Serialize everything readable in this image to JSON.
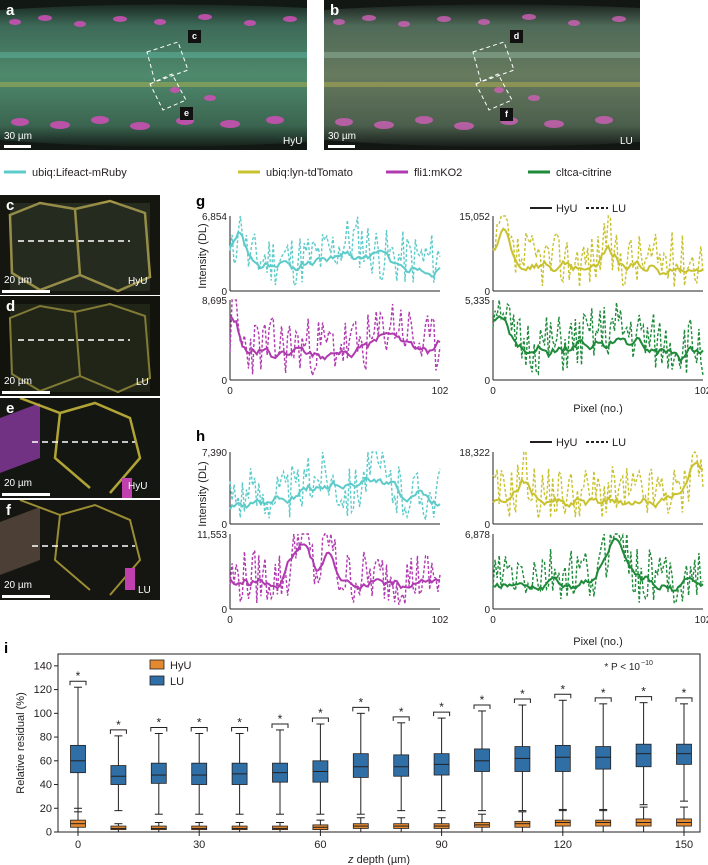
{
  "panels": {
    "a": {
      "letter": "a",
      "condition": "HyU",
      "scale": "30 µm",
      "inset_c": "c",
      "inset_e": "e"
    },
    "b": {
      "letter": "b",
      "condition": "LU",
      "scale": "30 µm",
      "inset_d": "d",
      "inset_f": "f"
    },
    "c": {
      "letter": "c",
      "condition": "HyU",
      "scale": "20 µm"
    },
    "d": {
      "letter": "d",
      "condition": "LU",
      "scale": "20 µm"
    },
    "e": {
      "letter": "e",
      "condition": "HyU",
      "scale": "20 µm"
    },
    "f": {
      "letter": "f",
      "condition": "LU",
      "scale": "20 µm"
    },
    "g": {
      "letter": "g"
    },
    "h": {
      "letter": "h"
    },
    "i": {
      "letter": "i"
    }
  },
  "legend_channels": [
    {
      "label": "ubiq:Lifeact-mRuby",
      "color": "#5ecbcb"
    },
    {
      "label": "ubiq:lyn-tdTomato",
      "color": "#c9c230"
    },
    {
      "label": "fli1:mKO2",
      "color": "#b03ab0"
    },
    {
      "label": "cltca-citrine",
      "color": "#1e8a3a"
    }
  ],
  "profile_legend": {
    "solid": "HyU",
    "dashed": "LU"
  },
  "profile_axes": {
    "ylabel": "Intensity (DL)",
    "xlabel": "Pixel (no.)",
    "xmin": "0",
    "xmax": "102",
    "ymin": "0"
  },
  "profile_ymax": {
    "g_cyan": "6,854",
    "g_yellow": "15,052",
    "g_magenta": "8,695",
    "g_green": "5,335",
    "h_cyan": "7,390",
    "h_yellow": "18,322",
    "h_magenta": "11,553",
    "h_green": "6,878"
  },
  "box_legend": {
    "hyu": "HyU",
    "lu": "LU",
    "significance": "* P < 10",
    "significance_exp": "−10"
  },
  "colors": {
    "hyu": "#e3892f",
    "lu": "#2f6fa6",
    "cyan": "#5ecbcb",
    "yellow": "#c9c230",
    "magenta": "#b03ab0",
    "green": "#1e8a3a"
  },
  "chart_data": {
    "type": "box",
    "xlabel_var": "z",
    "xlabel_rest": " depth (µm)",
    "ylabel": "Relative residual (%)",
    "ylim": [
      0,
      150
    ],
    "yticks": [
      "0",
      "20",
      "40",
      "60",
      "80",
      "100",
      "120",
      "140"
    ],
    "xticks": [
      "0",
      "30",
      "60",
      "90",
      "120",
      "150"
    ],
    "x": [
      0,
      10,
      20,
      30,
      40,
      50,
      60,
      70,
      80,
      90,
      100,
      110,
      120,
      130,
      140,
      150
    ],
    "star": "*",
    "series": [
      {
        "name": "HyU",
        "boxes": [
          [
            0,
            4,
            7,
            10,
            20
          ],
          [
            0,
            2,
            3,
            5,
            7
          ],
          [
            0,
            2,
            3,
            5,
            8
          ],
          [
            0,
            2,
            3,
            5,
            8
          ],
          [
            0,
            2,
            3,
            5,
            8
          ],
          [
            0,
            2,
            3,
            5,
            8
          ],
          [
            0,
            2,
            4,
            6,
            10
          ],
          [
            0,
            3,
            5,
            7,
            12
          ],
          [
            0,
            3,
            5,
            7,
            12
          ],
          [
            0,
            3,
            5,
            7,
            12
          ],
          [
            0,
            4,
            6,
            8,
            15
          ],
          [
            0,
            4,
            7,
            9,
            17
          ],
          [
            0,
            5,
            8,
            10,
            19
          ],
          [
            0,
            5,
            8,
            10,
            19
          ],
          [
            0,
            5,
            8,
            11,
            21
          ],
          [
            0,
            5,
            8,
            11,
            21
          ]
        ]
      },
      {
        "name": "LU",
        "boxes": [
          [
            17,
            50,
            60,
            73,
            122
          ],
          [
            18,
            40,
            47,
            56,
            81
          ],
          [
            15,
            41,
            48,
            58,
            83
          ],
          [
            15,
            40,
            48,
            58,
            83
          ],
          [
            15,
            40,
            49,
            58,
            83
          ],
          [
            15,
            42,
            50,
            58,
            86
          ],
          [
            15,
            42,
            51,
            60,
            91
          ],
          [
            15,
            46,
            55,
            66,
            100
          ],
          [
            18,
            47,
            55,
            65,
            92
          ],
          [
            18,
            48,
            57,
            66,
            96
          ],
          [
            18,
            51,
            60,
            70,
            102
          ],
          [
            18,
            51,
            62,
            72,
            107
          ],
          [
            18,
            51,
            63,
            73,
            111
          ],
          [
            18,
            53,
            63,
            72,
            108
          ],
          [
            23,
            55,
            66,
            74,
            109
          ],
          [
            26,
            57,
            66,
            74,
            108
          ]
        ]
      }
    ]
  }
}
